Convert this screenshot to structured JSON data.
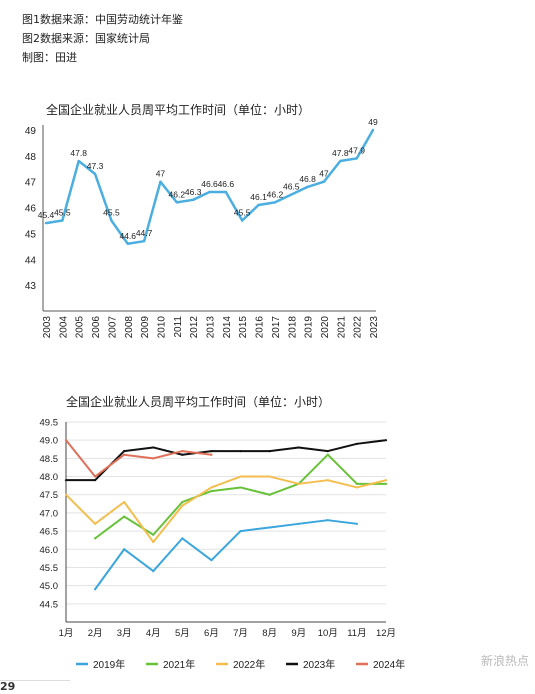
{
  "notes": {
    "line1": "图1数据来源：中国劳动统计年鉴",
    "line2": "图2数据来源：国家统计局",
    "line3": "制图：田进"
  },
  "footer": {
    "page_mark": "29",
    "watermark": "新浪热点"
  },
  "colors": {
    "chart1_line": "#4BAEE0",
    "series_2019": "#3AA6DD",
    "series_2021": "#67C23A",
    "series_2022": "#F4BE4F",
    "series_2023": "#111111",
    "series_2024": "#E0705A"
  },
  "chart_data": [
    {
      "type": "line",
      "title": "全国企业就业人员周平均工作时间（单位：小时）",
      "categories": [
        "2003",
        "2004",
        "2005",
        "2006",
        "2007",
        "2008",
        "2009",
        "2010",
        "2011",
        "2012",
        "2013",
        "2014",
        "2015",
        "2016",
        "2017",
        "2018",
        "2019",
        "2020",
        "2021",
        "2022",
        "2023"
      ],
      "values": [
        45.4,
        45.5,
        47.8,
        47.3,
        45.5,
        44.6,
        44.7,
        47.0,
        46.2,
        46.3,
        46.6,
        46.6,
        45.5,
        46.1,
        46.2,
        46.5,
        46.8,
        47.0,
        47.8,
        47.9,
        49.0
      ],
      "data_labels": [
        "45.4",
        "45.5",
        "47.8",
        "47.3",
        "45.5",
        "44.6",
        "44.7",
        "47",
        "46.2",
        "46.3",
        "46.6",
        "46.6",
        "45.5",
        "46.1",
        "46.2",
        "46.5",
        "46.8",
        "47",
        "47.8",
        "47.9",
        "49"
      ],
      "yticks": [
        "49",
        "48",
        "47",
        "46",
        "45",
        "44",
        "43"
      ],
      "ylim": [
        42,
        49
      ],
      "grid": false
    },
    {
      "type": "line",
      "title": "全国企业就业人员周平均工作时间（单位：小时）",
      "categories": [
        "1月",
        "2月",
        "3月",
        "4月",
        "5月",
        "6月",
        "7月",
        "8月",
        "9月",
        "10月",
        "11月",
        "12月"
      ],
      "yticks": [
        "49.5",
        "49.0",
        "48.5",
        "48.0",
        "47.5",
        "47.0",
        "46.5",
        "46.0",
        "45.5",
        "45.0",
        "44.5"
      ],
      "ylim": [
        44,
        49.5
      ],
      "grid": true,
      "legend_position": "bottom",
      "series": [
        {
          "name": "2019年",
          "values": [
            null,
            44.9,
            46.0,
            45.4,
            46.3,
            45.7,
            46.5,
            46.6,
            46.7,
            46.8,
            46.7,
            null
          ]
        },
        {
          "name": "2021年",
          "values": [
            null,
            46.3,
            46.9,
            46.4,
            47.3,
            47.6,
            47.7,
            47.5,
            47.8,
            48.6,
            47.8,
            47.8
          ]
        },
        {
          "name": "2022年",
          "values": [
            47.5,
            46.7,
            47.3,
            46.2,
            47.2,
            47.7,
            48.0,
            48.0,
            47.8,
            47.9,
            47.7,
            47.9
          ]
        },
        {
          "name": "2023年",
          "values": [
            47.9,
            47.9,
            48.7,
            48.8,
            48.6,
            48.7,
            48.7,
            48.7,
            48.8,
            48.7,
            48.9,
            49.0
          ]
        },
        {
          "name": "2024年",
          "values": [
            49.0,
            48.0,
            48.6,
            48.5,
            48.7,
            48.6,
            null,
            null,
            null,
            null,
            null,
            null
          ]
        }
      ]
    }
  ]
}
